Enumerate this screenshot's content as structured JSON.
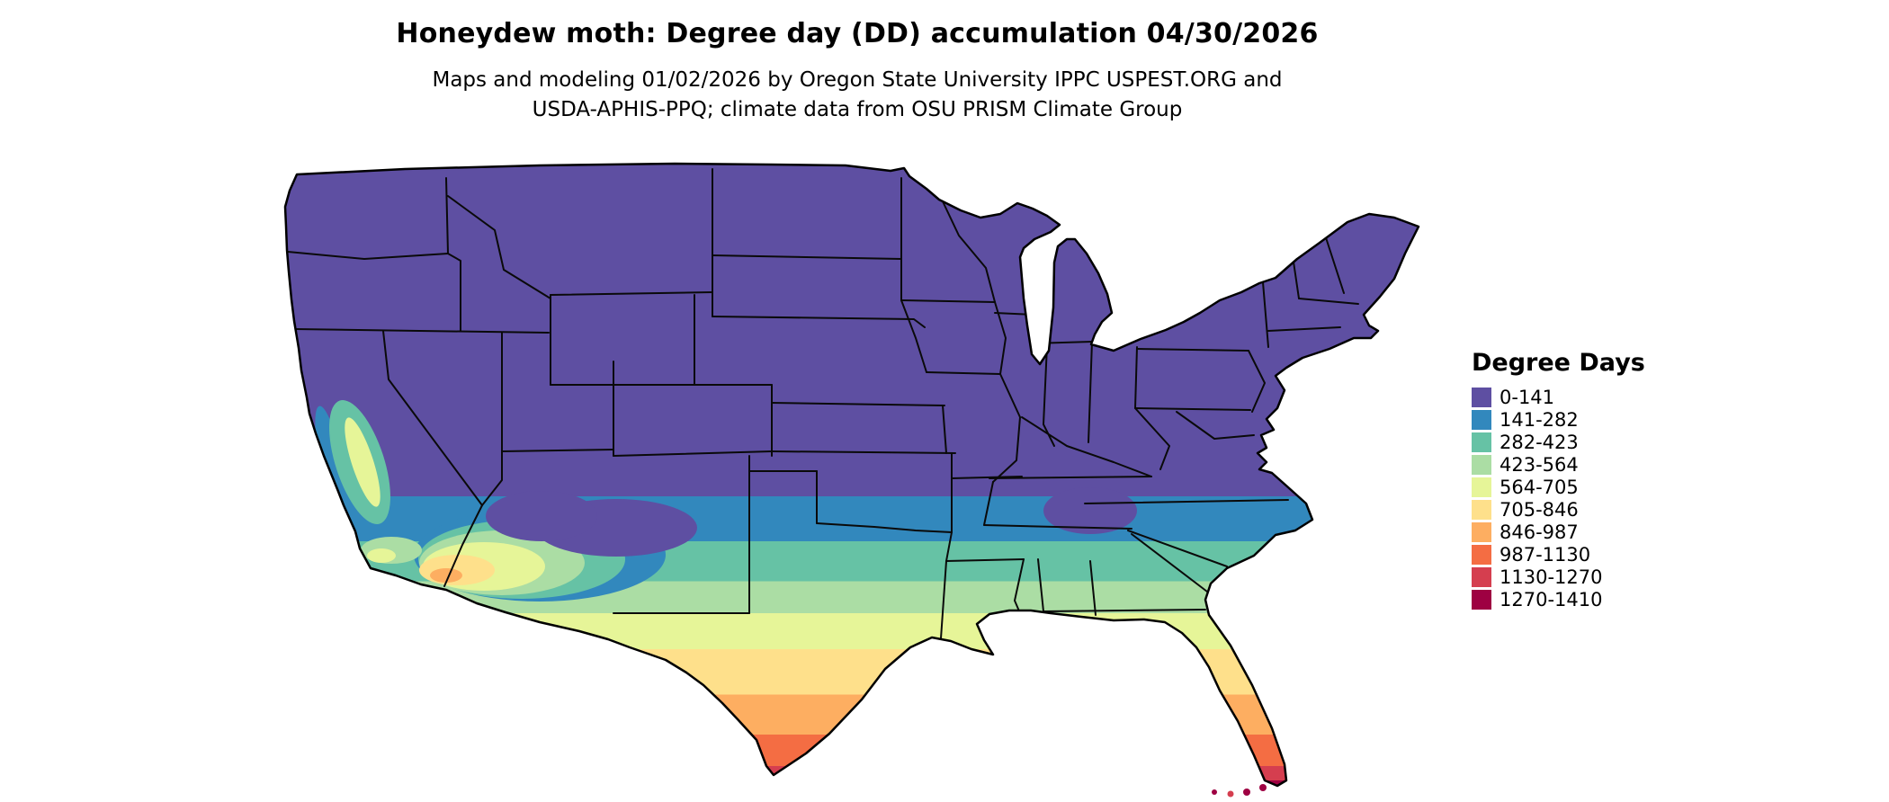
{
  "header": {
    "title": "Honeydew moth: Degree day (DD) accumulation 04/30/2026",
    "subtitle_line1": "Maps and modeling 01/02/2026 by Oregon State University IPPC USPEST.ORG and",
    "subtitle_line2": "USDA-APHIS-PPQ; climate data from OSU PRISM Climate Group"
  },
  "legend": {
    "title": "Degree Days",
    "items": [
      {
        "label": "0-141",
        "color": "#5e4fa2"
      },
      {
        "label": "141-282",
        "color": "#3288bd"
      },
      {
        "label": "282-423",
        "color": "#66c2a5"
      },
      {
        "label": "423-564",
        "color": "#abdda4"
      },
      {
        "label": "564-705",
        "color": "#e6f598"
      },
      {
        "label": "705-846",
        "color": "#fee08b"
      },
      {
        "label": "846-987",
        "color": "#fdae61"
      },
      {
        "label": "987-1130",
        "color": "#f46d43"
      },
      {
        "label": "1130-1270",
        "color": "#d53e4f"
      },
      {
        "label": "1270-1410",
        "color": "#9e0142"
      }
    ]
  },
  "map": {
    "region": "Contiguous United States",
    "outline_color": "#000000",
    "state_border_color": "#000000",
    "background": "#ffffff"
  }
}
